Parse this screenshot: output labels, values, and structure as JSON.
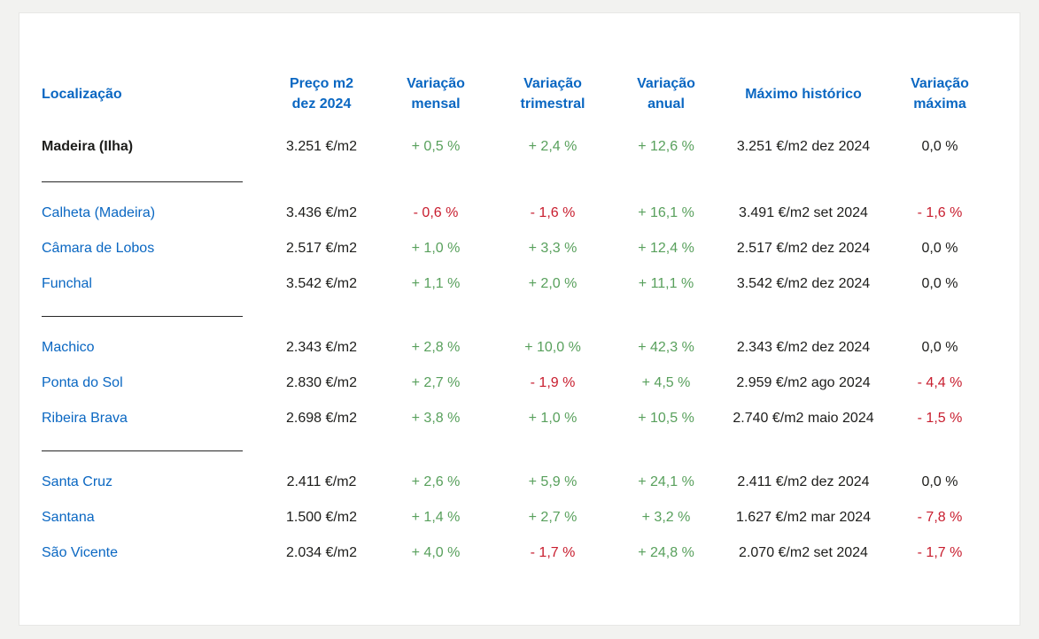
{
  "page": {
    "background_color": "#f2f2f0",
    "card_background": "#ffffff"
  },
  "colors": {
    "header_blue": "#0a67c2",
    "link_blue": "#0a67c2",
    "positive_green": "#58a05c",
    "negative_red": "#c81d2e",
    "neutral_text": "#1d1d1b"
  },
  "table": {
    "columns": [
      {
        "key": "loc",
        "lines": [
          "Localização"
        ]
      },
      {
        "key": "price",
        "lines": [
          "Preço m2",
          "dez 2024"
        ]
      },
      {
        "key": "monthly",
        "lines": [
          "Variação",
          "mensal"
        ]
      },
      {
        "key": "quarterly",
        "lines": [
          "Variação",
          "trimestral"
        ]
      },
      {
        "key": "annual",
        "lines": [
          "Variação",
          "anual"
        ]
      },
      {
        "key": "max",
        "lines": [
          "Máximo histórico"
        ]
      },
      {
        "key": "maxvar",
        "lines": [
          "Variação",
          "máxima"
        ]
      }
    ],
    "rows": [
      {
        "location": "Madeira (Ilha)",
        "is_link": false,
        "bold": true,
        "price": "3.251 €/m2",
        "monthly": {
          "text": "+ 0,5 %",
          "tone": "pos"
        },
        "quarterly": {
          "text": "+ 2,4 %",
          "tone": "pos"
        },
        "annual": {
          "text": "+ 12,6 %",
          "tone": "pos"
        },
        "max_historic": "3.251 €/m2 dez 2024",
        "max_variation": {
          "text": "0,0 %",
          "tone": "neutral"
        },
        "separator_after": true
      },
      {
        "location": "Calheta (Madeira)",
        "is_link": true,
        "bold": false,
        "price": "3.436 €/m2",
        "monthly": {
          "text": "- 0,6 %",
          "tone": "neg"
        },
        "quarterly": {
          "text": "- 1,6 %",
          "tone": "neg"
        },
        "annual": {
          "text": "+ 16,1 %",
          "tone": "pos"
        },
        "max_historic": "3.491 €/m2 set 2024",
        "max_variation": {
          "text": "- 1,6 %",
          "tone": "neg"
        },
        "separator_after": false
      },
      {
        "location": "Câmara de Lobos",
        "is_link": true,
        "bold": false,
        "price": "2.517 €/m2",
        "monthly": {
          "text": "+ 1,0 %",
          "tone": "pos"
        },
        "quarterly": {
          "text": "+ 3,3 %",
          "tone": "pos"
        },
        "annual": {
          "text": "+ 12,4 %",
          "tone": "pos"
        },
        "max_historic": "2.517 €/m2 dez 2024",
        "max_variation": {
          "text": "0,0 %",
          "tone": "neutral"
        },
        "separator_after": false
      },
      {
        "location": "Funchal",
        "is_link": true,
        "bold": false,
        "price": "3.542 €/m2",
        "monthly": {
          "text": "+ 1,1 %",
          "tone": "pos"
        },
        "quarterly": {
          "text": "+ 2,0 %",
          "tone": "pos"
        },
        "annual": {
          "text": "+ 11,1 %",
          "tone": "pos"
        },
        "max_historic": "3.542 €/m2 dez 2024",
        "max_variation": {
          "text": "0,0 %",
          "tone": "neutral"
        },
        "separator_after": true
      },
      {
        "location": "Machico",
        "is_link": true,
        "bold": false,
        "price": "2.343 €/m2",
        "monthly": {
          "text": "+ 2,8 %",
          "tone": "pos"
        },
        "quarterly": {
          "text": "+ 10,0 %",
          "tone": "pos"
        },
        "annual": {
          "text": "+ 42,3 %",
          "tone": "pos"
        },
        "max_historic": "2.343 €/m2 dez 2024",
        "max_variation": {
          "text": "0,0 %",
          "tone": "neutral"
        },
        "separator_after": false
      },
      {
        "location": "Ponta do Sol",
        "is_link": true,
        "bold": false,
        "price": "2.830 €/m2",
        "monthly": {
          "text": "+ 2,7 %",
          "tone": "pos"
        },
        "quarterly": {
          "text": "- 1,9 %",
          "tone": "neg"
        },
        "annual": {
          "text": "+ 4,5 %",
          "tone": "pos"
        },
        "max_historic": "2.959 €/m2 ago 2024",
        "max_variation": {
          "text": "- 4,4 %",
          "tone": "neg"
        },
        "separator_after": false
      },
      {
        "location": "Ribeira Brava",
        "is_link": true,
        "bold": false,
        "price": "2.698 €/m2",
        "monthly": {
          "text": "+ 3,8 %",
          "tone": "pos"
        },
        "quarterly": {
          "text": "+ 1,0 %",
          "tone": "pos"
        },
        "annual": {
          "text": "+ 10,5 %",
          "tone": "pos"
        },
        "max_historic": "2.740 €/m2 maio 2024",
        "max_variation": {
          "text": "- 1,5 %",
          "tone": "neg"
        },
        "separator_after": true
      },
      {
        "location": "Santa Cruz",
        "is_link": true,
        "bold": false,
        "price": "2.411 €/m2",
        "monthly": {
          "text": "+ 2,6 %",
          "tone": "pos"
        },
        "quarterly": {
          "text": "+ 5,9 %",
          "tone": "pos"
        },
        "annual": {
          "text": "+ 24,1 %",
          "tone": "pos"
        },
        "max_historic": "2.411 €/m2 dez 2024",
        "max_variation": {
          "text": "0,0 %",
          "tone": "neutral"
        },
        "separator_after": false
      },
      {
        "location": "Santana",
        "is_link": true,
        "bold": false,
        "price": "1.500 €/m2",
        "monthly": {
          "text": "+ 1,4 %",
          "tone": "pos"
        },
        "quarterly": {
          "text": "+ 2,7 %",
          "tone": "pos"
        },
        "annual": {
          "text": "+ 3,2 %",
          "tone": "pos"
        },
        "max_historic": "1.627 €/m2 mar 2024",
        "max_variation": {
          "text": "- 7,8 %",
          "tone": "neg"
        },
        "separator_after": false
      },
      {
        "location": "São Vicente",
        "is_link": true,
        "bold": false,
        "price": "2.034 €/m2",
        "monthly": {
          "text": "+ 4,0 %",
          "tone": "pos"
        },
        "quarterly": {
          "text": "- 1,7 %",
          "tone": "neg"
        },
        "annual": {
          "text": "+ 24,8 %",
          "tone": "pos"
        },
        "max_historic": "2.070 €/m2 set 2024",
        "max_variation": {
          "text": "- 1,7 %",
          "tone": "neg"
        },
        "separator_after": false
      }
    ]
  },
  "chart_data": {
    "type": "table",
    "columns": [
      "Localização",
      "Preço m2 dez 2024",
      "Variação mensal",
      "Variação trimestral",
      "Variação anual",
      "Máximo histórico",
      "Variação máxima"
    ],
    "rows": [
      [
        "Madeira (Ilha)",
        "3.251 €/m2",
        "+ 0,5 %",
        "+ 2,4 %",
        "+ 12,6 %",
        "3.251 €/m2 dez 2024",
        "0,0 %"
      ],
      [
        "Calheta (Madeira)",
        "3.436 €/m2",
        "- 0,6 %",
        "- 1,6 %",
        "+ 16,1 %",
        "3.491 €/m2 set 2024",
        "- 1,6 %"
      ],
      [
        "Câmara de Lobos",
        "2.517 €/m2",
        "+ 1,0 %",
        "+ 3,3 %",
        "+ 12,4 %",
        "2.517 €/m2 dez 2024",
        "0,0 %"
      ],
      [
        "Funchal",
        "3.542 €/m2",
        "+ 1,1 %",
        "+ 2,0 %",
        "+ 11,1 %",
        "3.542 €/m2 dez 2024",
        "0,0 %"
      ],
      [
        "Machico",
        "2.343 €/m2",
        "+ 2,8 %",
        "+ 10,0 %",
        "+ 42,3 %",
        "2.343 €/m2 dez 2024",
        "0,0 %"
      ],
      [
        "Ponta do Sol",
        "2.830 €/m2",
        "+ 2,7 %",
        "- 1,9 %",
        "+ 4,5 %",
        "2.959 €/m2 ago 2024",
        "- 4,4 %"
      ],
      [
        "Ribeira Brava",
        "2.698 €/m2",
        "+ 3,8 %",
        "+ 1,0 %",
        "+ 10,5 %",
        "2.740 €/m2 maio 2024",
        "- 1,5 %"
      ],
      [
        "Santa Cruz",
        "2.411 €/m2",
        "+ 2,6 %",
        "+ 5,9 %",
        "+ 24,1 %",
        "2.411 €/m2 dez 2024",
        "0,0 %"
      ],
      [
        "Santana",
        "1.500 €/m2",
        "+ 1,4 %",
        "+ 2,7 %",
        "+ 3,2 %",
        "1.627 €/m2 mar 2024",
        "- 7,8 %"
      ],
      [
        "São Vicente",
        "2.034 €/m2",
        "+ 4,0 %",
        "- 1,7 %",
        "+ 24,8 %",
        "2.070 €/m2 set 2024",
        "- 1,7 %"
      ]
    ]
  }
}
